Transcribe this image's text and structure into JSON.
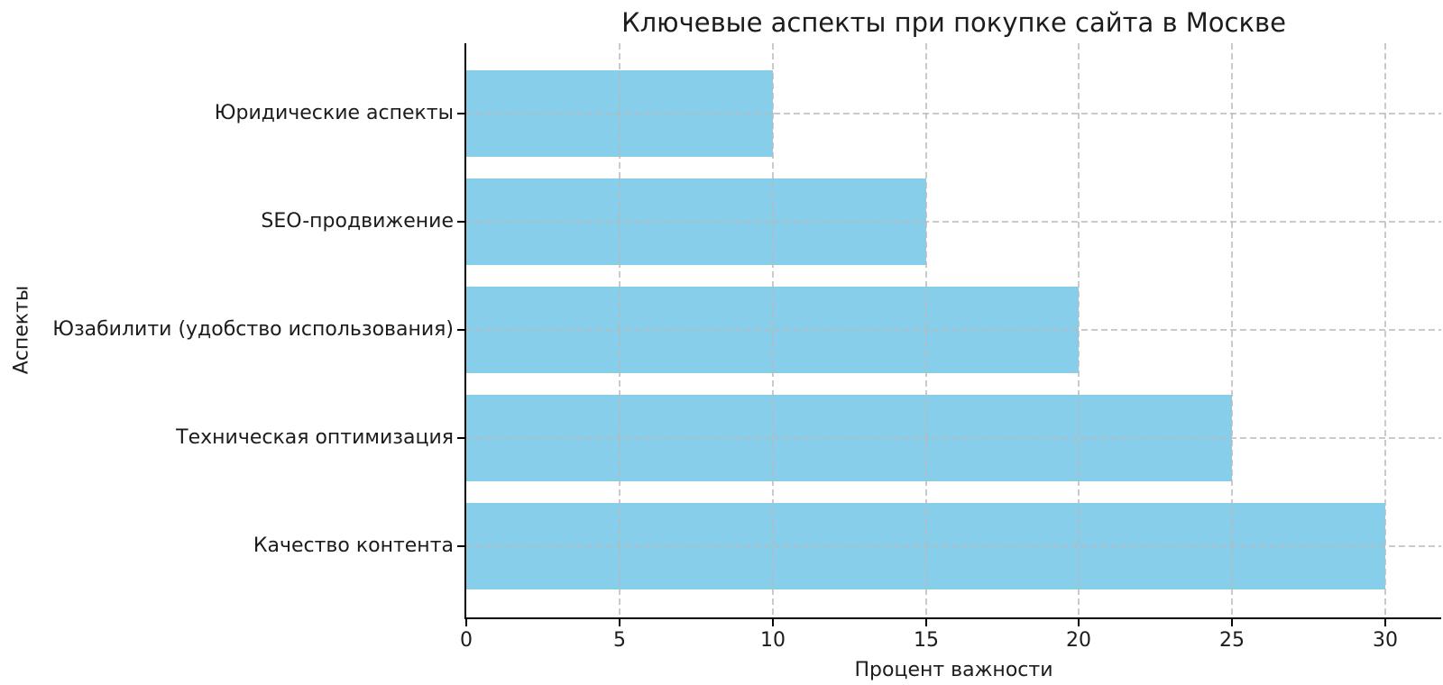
{
  "chart_data": {
    "type": "bar",
    "orientation": "horizontal",
    "title": "Ключевые аспекты при покупке сайта в Москве",
    "xlabel": "Процент важности",
    "ylabel": "Аспекты",
    "categories": [
      "Юридические аспекты",
      "SEO-продвижение",
      "Юзабилити (удобство использования)",
      "Техническая оптимизация",
      "Качество контента"
    ],
    "values": [
      10,
      15,
      20,
      25,
      30
    ],
    "xticks": [
      0,
      5,
      10,
      15,
      20,
      25,
      30
    ],
    "xlim": [
      0,
      31.8
    ],
    "bar_color": "#87CEEB",
    "grid": {
      "style": "dashed",
      "color": "#b9b9b9",
      "over_bars": true
    },
    "legend": "none",
    "background": "#ffffff"
  }
}
